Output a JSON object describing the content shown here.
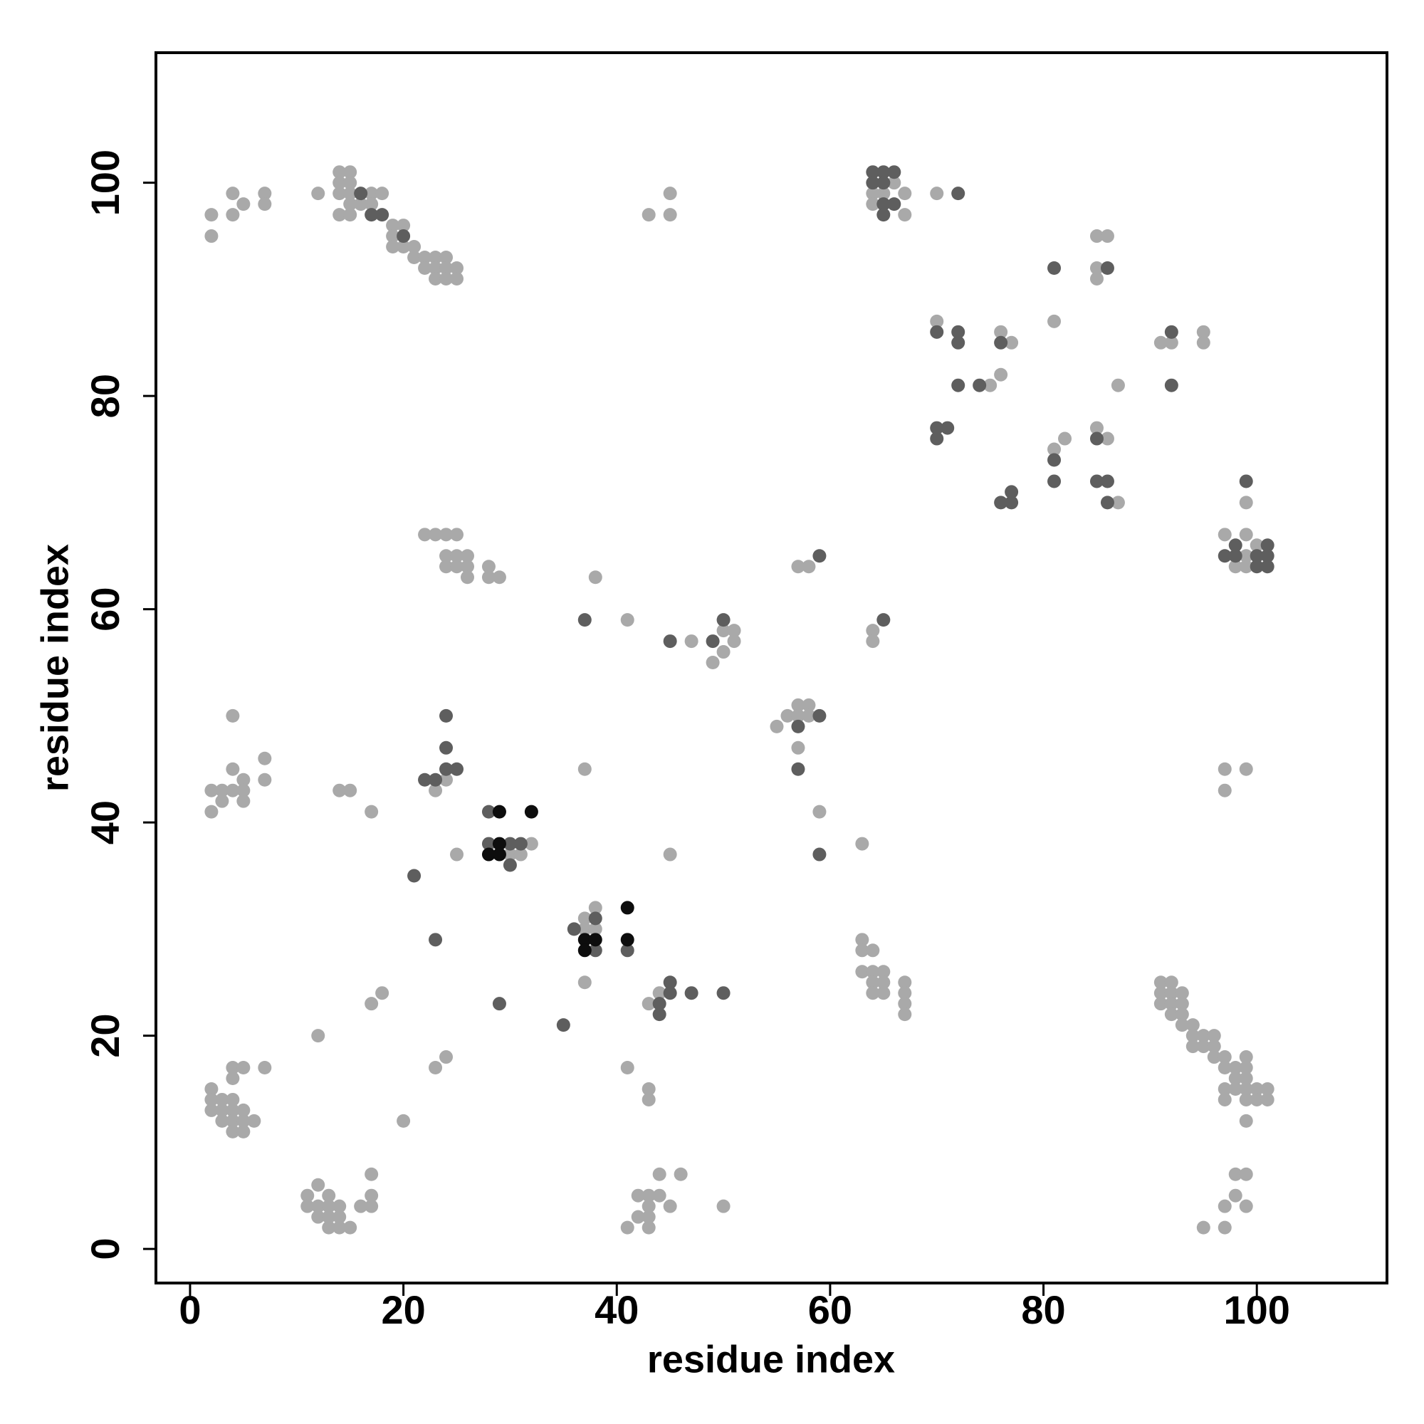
{
  "chart_data": {
    "type": "scatter",
    "x_label": "residue index",
    "y_label": "residue index",
    "xlim": [
      -3.2,
      112.2
    ],
    "ylim": [
      -3.2,
      112.2
    ],
    "xticks": [
      0,
      20,
      40,
      60,
      80,
      100
    ],
    "yticks": [
      0,
      20,
      40,
      60,
      80,
      100
    ],
    "series": [
      {
        "color": "#a9a9a9",
        "x": [
          2,
          2,
          4,
          4,
          5,
          7,
          7,
          12,
          14,
          15,
          14,
          15,
          14,
          15,
          17,
          18,
          14,
          15,
          15,
          16,
          17,
          19,
          20,
          19,
          19,
          20,
          21,
          21,
          22,
          23,
          24,
          22,
          23,
          24,
          25,
          23,
          24,
          25,
          43,
          45,
          45,
          64,
          65,
          66,
          64,
          67,
          67,
          70,
          85,
          86,
          85,
          85,
          81,
          70,
          76,
          77,
          76,
          75,
          81,
          82,
          85,
          86,
          87,
          87,
          91,
          92,
          95,
          95,
          99,
          97,
          99,
          98,
          99,
          99,
          100,
          22,
          23,
          24,
          25,
          24,
          25,
          26,
          24,
          25,
          26,
          26,
          28,
          28,
          29,
          38,
          41,
          47,
          50,
          51,
          51,
          50,
          49,
          57,
          58,
          64,
          64,
          55,
          56,
          57,
          58,
          57,
          58,
          57,
          59,
          63,
          4,
          4,
          7,
          7,
          5,
          2,
          3,
          4,
          5,
          3,
          5,
          2,
          14,
          15,
          17,
          24,
          23,
          32,
          30,
          31,
          25,
          37,
          45,
          38,
          37,
          37,
          38,
          37,
          43,
          44,
          63,
          63,
          64,
          63,
          64,
          65,
          64,
          65,
          64,
          65,
          67,
          67,
          67,
          67,
          17,
          18,
          12,
          2,
          2,
          3,
          4,
          2,
          3,
          4,
          5,
          3,
          4,
          5,
          6,
          4,
          5,
          4,
          5,
          7,
          4,
          20,
          23,
          24,
          41,
          43,
          43,
          11,
          12,
          13,
          11,
          12,
          13,
          14,
          12,
          13,
          14,
          13,
          14,
          15,
          16,
          17,
          17,
          17,
          41,
          43,
          42,
          43,
          42,
          43,
          44,
          43,
          45,
          44,
          46,
          50,
          91,
          92,
          91,
          92,
          93,
          91,
          92,
          93,
          92,
          93,
          93,
          94,
          94,
          95,
          96,
          94,
          95,
          96,
          96,
          97,
          99,
          97,
          98,
          99,
          98,
          99,
          98,
          97,
          99,
          100,
          101,
          97,
          99,
          100,
          101,
          99,
          98,
          99,
          98,
          97,
          99,
          95,
          97,
          97,
          99,
          97
        ],
        "y": [
          97,
          95,
          99,
          97,
          98,
          99,
          98,
          99,
          101,
          101,
          100,
          100,
          99,
          99,
          99,
          99,
          97,
          97,
          98,
          98,
          98,
          96,
          96,
          95,
          94,
          94,
          94,
          93,
          93,
          93,
          93,
          92,
          92,
          92,
          92,
          91,
          91,
          91,
          97,
          99,
          97,
          99,
          99,
          100,
          98,
          99,
          97,
          99,
          95,
          95,
          92,
          91,
          87,
          87,
          86,
          85,
          82,
          81,
          75,
          76,
          77,
          76,
          70,
          81,
          85,
          85,
          86,
          85,
          70,
          67,
          67,
          64,
          65,
          64,
          66,
          67,
          67,
          67,
          67,
          65,
          65,
          65,
          64,
          64,
          64,
          63,
          64,
          63,
          63,
          63,
          59,
          57,
          58,
          58,
          57,
          56,
          55,
          64,
          64,
          58,
          57,
          49,
          50,
          51,
          51,
          50,
          50,
          47,
          41,
          38,
          50,
          45,
          46,
          44,
          44,
          43,
          43,
          43,
          43,
          42,
          42,
          41,
          43,
          43,
          41,
          44,
          43,
          38,
          37,
          37,
          37,
          45,
          37,
          32,
          31,
          30,
          30,
          25,
          23,
          24,
          29,
          28,
          28,
          26,
          26,
          26,
          25,
          25,
          24,
          24,
          25,
          24,
          23,
          22,
          23,
          24,
          20,
          15,
          14,
          14,
          14,
          13,
          13,
          13,
          13,
          12,
          12,
          12,
          12,
          11,
          11,
          17,
          17,
          17,
          16,
          12,
          17,
          18,
          17,
          15,
          14,
          5,
          6,
          5,
          4,
          4,
          4,
          4,
          3,
          3,
          3,
          2,
          2,
          2,
          4,
          4,
          5,
          7,
          2,
          2,
          3,
          3,
          5,
          5,
          5,
          4,
          4,
          7,
          7,
          4,
          25,
          25,
          24,
          24,
          24,
          23,
          23,
          23,
          22,
          22,
          21,
          21,
          20,
          20,
          20,
          19,
          19,
          19,
          18,
          18,
          18,
          17,
          17,
          17,
          16,
          16,
          15,
          15,
          15,
          15,
          15,
          14,
          14,
          14,
          14,
          12,
          7,
          7,
          5,
          4,
          4,
          2,
          2,
          45,
          45,
          43
        ]
      },
      {
        "color": "#5e5e5e",
        "x": [
          16,
          17,
          18,
          20,
          64,
          65,
          66,
          64,
          65,
          65,
          66,
          65,
          72,
          81,
          86,
          70,
          72,
          72,
          76,
          74,
          72,
          70,
          71,
          70,
          81,
          81,
          85,
          85,
          86,
          86,
          76,
          77,
          77,
          92,
          92,
          99,
          97,
          98,
          98,
          100,
          100,
          101,
          101,
          101,
          37,
          45,
          49,
          50,
          59,
          65,
          57,
          59,
          57,
          59,
          24,
          24,
          24,
          25,
          22,
          23,
          28,
          28,
          30,
          31,
          30,
          21,
          38,
          36,
          38,
          41,
          23,
          35,
          29,
          44,
          44,
          45,
          45,
          47,
          50
        ],
        "y": [
          99,
          97,
          97,
          95,
          101,
          101,
          101,
          100,
          100,
          98,
          98,
          97,
          99,
          92,
          92,
          86,
          86,
          85,
          85,
          81,
          81,
          77,
          77,
          76,
          74,
          72,
          76,
          72,
          72,
          70,
          70,
          71,
          70,
          86,
          81,
          72,
          65,
          66,
          65,
          65,
          64,
          66,
          65,
          64,
          59,
          57,
          57,
          59,
          65,
          59,
          49,
          50,
          45,
          37,
          50,
          47,
          45,
          45,
          44,
          44,
          41,
          38,
          38,
          38,
          36,
          35,
          31,
          30,
          28,
          28,
          29,
          21,
          23,
          23,
          22,
          25,
          24,
          24,
          24
        ]
      },
      {
        "color": "#0d0d0d",
        "x": [
          29,
          32,
          29,
          28,
          29,
          37,
          38,
          37,
          41,
          41
        ],
        "y": [
          41,
          41,
          38,
          37,
          37,
          29,
          29,
          28,
          32,
          29
        ]
      }
    ]
  }
}
